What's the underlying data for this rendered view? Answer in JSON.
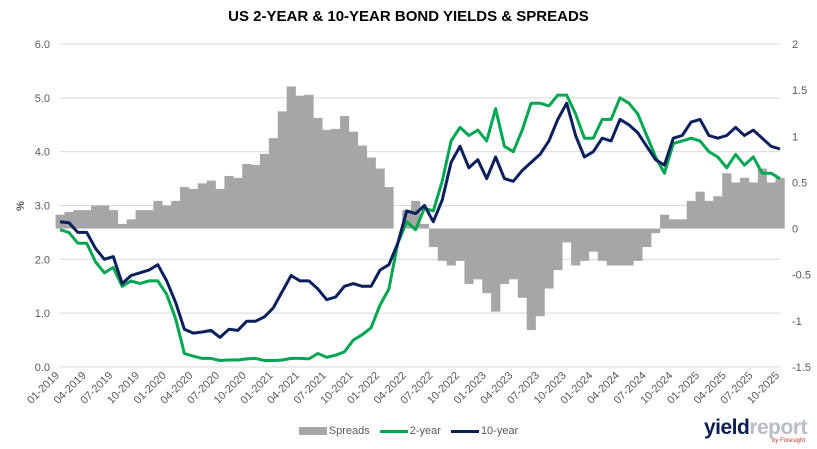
{
  "chart_data": {
    "type": "line+bar",
    "title": "US 2-YEAR & 10-YEAR BOND YIELDS & SPREADS",
    "ylabel": "%",
    "ylim": [
      0,
      6
    ],
    "y2lim": [
      -1.5,
      2
    ],
    "yticks": [
      "0.0",
      "1.0",
      "2.0",
      "3.0",
      "4.0",
      "5.0",
      "6.0"
    ],
    "y2ticks": [
      "-1.5",
      "-1",
      "-0.5",
      "0",
      "0.5",
      "1",
      "1.5",
      "2"
    ],
    "grid": true,
    "legend_position": "bottom",
    "xticks": [
      "01-2019",
      "04-2019",
      "07-2019",
      "10-2019",
      "01-2020",
      "04-2020",
      "07-2020",
      "10-2020",
      "01-2021",
      "04-2021",
      "07-2021",
      "10-2021",
      "01-2022",
      "04-2022",
      "07-2022",
      "10-2022",
      "01-2023",
      "04-2023",
      "07-2023",
      "10-2023",
      "01-2024",
      "04-2024",
      "07-2024",
      "10-2024",
      "01-2025",
      "04-2025",
      "07-2025",
      "10-2025"
    ],
    "x_start": "01-2019",
    "x_step": "month",
    "series": [
      {
        "name": "Spreads",
        "type": "bar",
        "axis": "right",
        "color": "#a6a6a6",
        "values": [
          0.15,
          0.18,
          0.2,
          0.2,
          0.25,
          0.25,
          0.2,
          0.05,
          0.1,
          0.2,
          0.2,
          0.3,
          0.25,
          0.3,
          0.45,
          0.43,
          0.49,
          0.52,
          0.43,
          0.57,
          0.55,
          0.7,
          0.69,
          0.81,
          0.98,
          1.27,
          1.54,
          1.44,
          1.45,
          1.2,
          1.07,
          1.08,
          1.22,
          1.05,
          0.9,
          0.77,
          0.65,
          0.45,
          0.0,
          0.2,
          0.3,
          0.05,
          -0.2,
          -0.35,
          -0.4,
          -0.35,
          -0.6,
          -0.55,
          -0.7,
          -0.9,
          -0.6,
          -0.55,
          -0.75,
          -1.1,
          -0.95,
          -0.65,
          -0.45,
          -0.15,
          -0.4,
          -0.35,
          -0.25,
          -0.35,
          -0.4,
          -0.4,
          -0.4,
          -0.35,
          -0.2,
          -0.05,
          0.15,
          0.1,
          0.1,
          0.3,
          0.4,
          0.3,
          0.35,
          0.6,
          0.5,
          0.55,
          0.5,
          0.65,
          0.5,
          0.55
        ]
      },
      {
        "name": "2-year",
        "type": "line",
        "axis": "left",
        "color": "#00a651",
        "values": [
          2.55,
          2.5,
          2.3,
          2.3,
          1.95,
          1.75,
          1.85,
          1.5,
          1.6,
          1.55,
          1.6,
          1.6,
          1.35,
          0.9,
          0.25,
          0.2,
          0.16,
          0.16,
          0.12,
          0.13,
          0.13,
          0.15,
          0.16,
          0.12,
          0.12,
          0.13,
          0.16,
          0.16,
          0.15,
          0.25,
          0.18,
          0.22,
          0.28,
          0.5,
          0.6,
          0.73,
          1.15,
          1.45,
          2.3,
          2.7,
          2.55,
          2.95,
          2.9,
          3.45,
          4.2,
          4.45,
          4.3,
          4.4,
          4.2,
          4.8,
          4.1,
          4.0,
          4.4,
          4.9,
          4.9,
          4.85,
          5.05,
          5.05,
          4.7,
          4.25,
          4.25,
          4.6,
          4.6,
          5.0,
          4.9,
          4.7,
          4.3,
          3.9,
          3.6,
          4.15,
          4.2,
          4.25,
          4.2,
          4.0,
          3.9,
          3.7,
          3.95,
          3.75,
          3.9,
          3.6,
          3.6,
          3.5
        ]
      },
      {
        "name": "10-year",
        "type": "line",
        "axis": "left",
        "color": "#0a1f5c",
        "values": [
          2.7,
          2.68,
          2.5,
          2.5,
          2.2,
          2.0,
          2.05,
          1.55,
          1.7,
          1.75,
          1.8,
          1.9,
          1.6,
          1.2,
          0.7,
          0.63,
          0.65,
          0.68,
          0.55,
          0.7,
          0.68,
          0.85,
          0.85,
          0.93,
          1.1,
          1.4,
          1.7,
          1.6,
          1.6,
          1.45,
          1.25,
          1.3,
          1.5,
          1.55,
          1.5,
          1.5,
          1.8,
          1.9,
          2.3,
          2.9,
          2.85,
          3.0,
          2.7,
          3.1,
          3.8,
          4.1,
          3.7,
          3.85,
          3.5,
          3.9,
          3.5,
          3.45,
          3.65,
          3.8,
          3.95,
          4.2,
          4.6,
          4.9,
          4.3,
          3.9,
          4.0,
          4.25,
          4.2,
          4.6,
          4.5,
          4.35,
          4.1,
          3.85,
          3.75,
          4.25,
          4.3,
          4.55,
          4.6,
          4.3,
          4.25,
          4.3,
          4.45,
          4.3,
          4.4,
          4.25,
          4.1,
          4.05
        ]
      }
    ]
  },
  "logo": {
    "text_a": "yield",
    "text_b": "report",
    "sub": "by Foresight"
  }
}
